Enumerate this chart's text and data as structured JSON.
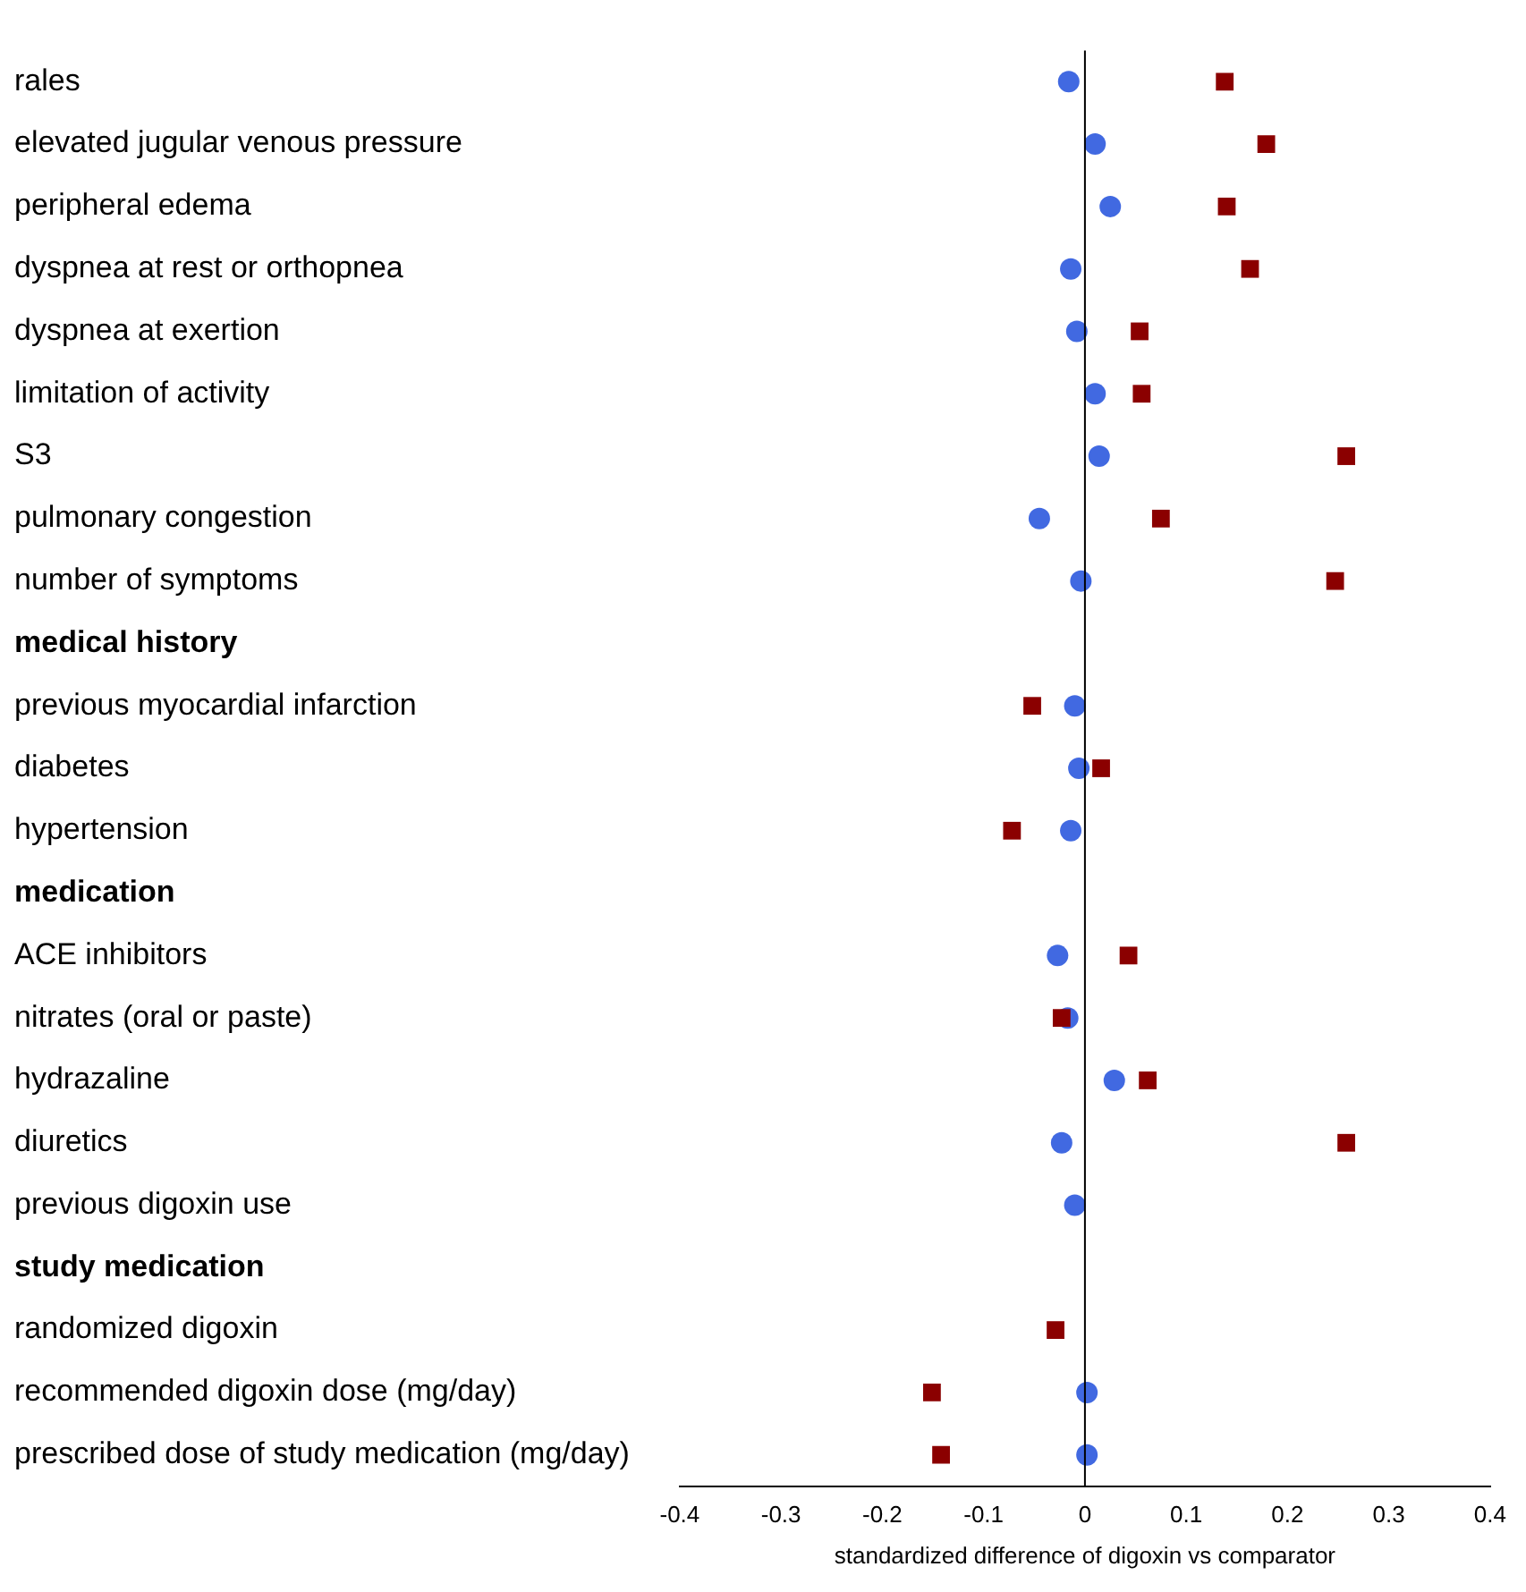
{
  "chart_data": {
    "type": "scatter",
    "orientation": "horizontal",
    "xlabel": "standardized difference of digoxin vs comparator",
    "categories": [
      "rales",
      "elevated jugular venous pressure",
      "peripheral edema",
      "dyspnea at rest or orthopnea",
      "dyspnea at exertion",
      "limitation of activity",
      "S3",
      "pulmonary congestion",
      "number of symptoms",
      "medical history",
      "previous myocardial infarction",
      "diabetes",
      "hypertension",
      "medication",
      "ACE inhibitors",
      "nitrates (oral or paste)",
      "hydrazaline",
      "diuretics",
      "previous digoxin use",
      "study medication",
      "randomized digoxin",
      "recommended digoxin dose (mg/day)",
      "prescribed dose of study medication (mg/day)"
    ],
    "series": [
      {
        "color": "#4169e1",
        "marker": "circle",
        "values": [
          -0.016,
          0.01,
          0.025,
          -0.014,
          -0.008,
          0.01,
          0.014,
          -0.045,
          -0.004,
          null,
          -0.01,
          -0.006,
          -0.014,
          null,
          -0.027,
          -0.017,
          0.029,
          -0.023,
          -0.01,
          null,
          null,
          0.002,
          0.002
        ]
      },
      {
        "color": "#8b0000",
        "marker": "square",
        "values": [
          0.138,
          0.179,
          0.14,
          0.163,
          0.054,
          0.056,
          0.258,
          0.075,
          0.247,
          null,
          -0.052,
          0.016,
          -0.072,
          null,
          0.043,
          -0.023,
          0.062,
          0.258,
          null,
          null,
          -0.029,
          -0.151,
          -0.142
        ]
      }
    ],
    "xlim": [
      -0.4,
      0.4
    ],
    "xticks": [
      -0.4,
      -0.3,
      -0.2,
      -0.1,
      0,
      0.1,
      0.2,
      0.3,
      0.4
    ],
    "ref_lines": [
      {
        "axis": "x",
        "value": 0,
        "color": "#000000"
      }
    ],
    "grid": false,
    "legend": false
  }
}
